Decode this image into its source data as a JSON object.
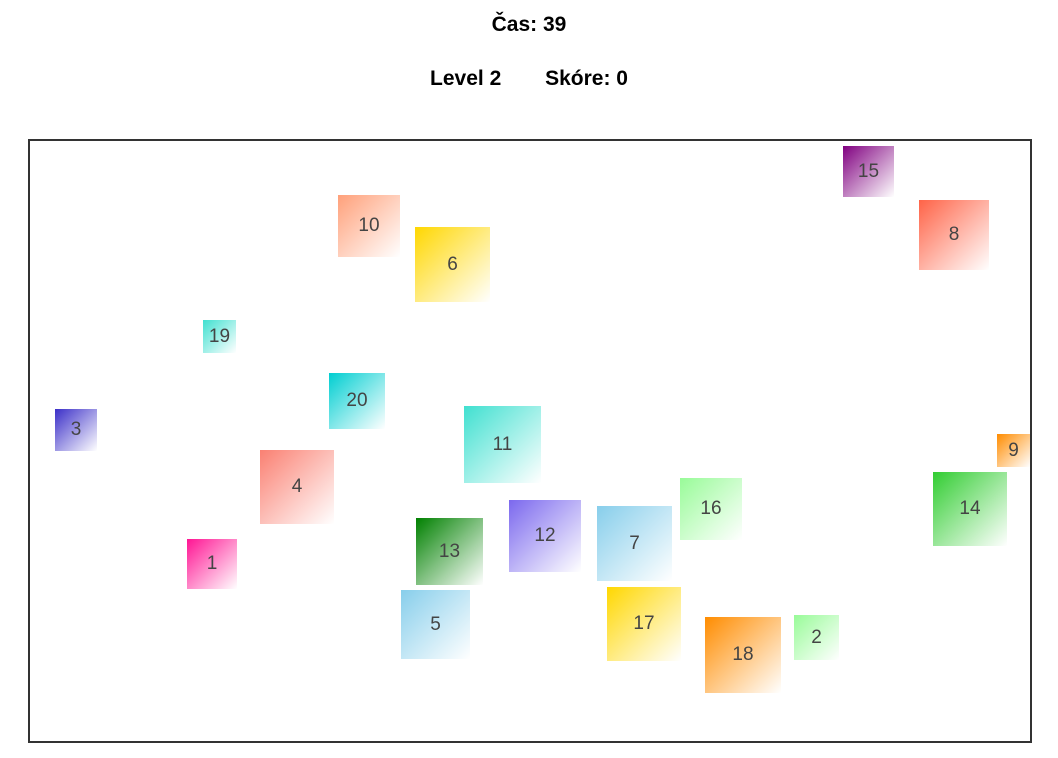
{
  "header": {
    "timer_label": "Čas: 39"
  },
  "stats": {
    "level_label": "Level 2",
    "score_label": "Skóre: 0"
  },
  "tiles": [
    {
      "number": "1",
      "color": "#ff1493"
    },
    {
      "number": "2",
      "color": "#98fb98"
    },
    {
      "number": "3",
      "color": "#3b2fc8"
    },
    {
      "number": "4",
      "color": "#fa8072"
    },
    {
      "number": "5",
      "color": "#87ceeb"
    },
    {
      "number": "6",
      "color": "#ffd700"
    },
    {
      "number": "7",
      "color": "#87ceeb"
    },
    {
      "number": "8",
      "color": "#ff6347"
    },
    {
      "number": "9",
      "color": "#ff8c00"
    },
    {
      "number": "10",
      "color": "#ffa07a"
    },
    {
      "number": "11",
      "color": "#40e0d0"
    },
    {
      "number": "12",
      "color": "#7b68ee"
    },
    {
      "number": "13",
      "color": "#008000"
    },
    {
      "number": "14",
      "color": "#32cd32"
    },
    {
      "number": "15",
      "color": "#800080"
    },
    {
      "number": "16",
      "color": "#98fb98"
    },
    {
      "number": "17",
      "color": "#ffd700"
    },
    {
      "number": "18",
      "color": "#ff8c00"
    },
    {
      "number": "19",
      "color": "#40e0d0"
    },
    {
      "number": "20",
      "color": "#00ced1"
    }
  ]
}
